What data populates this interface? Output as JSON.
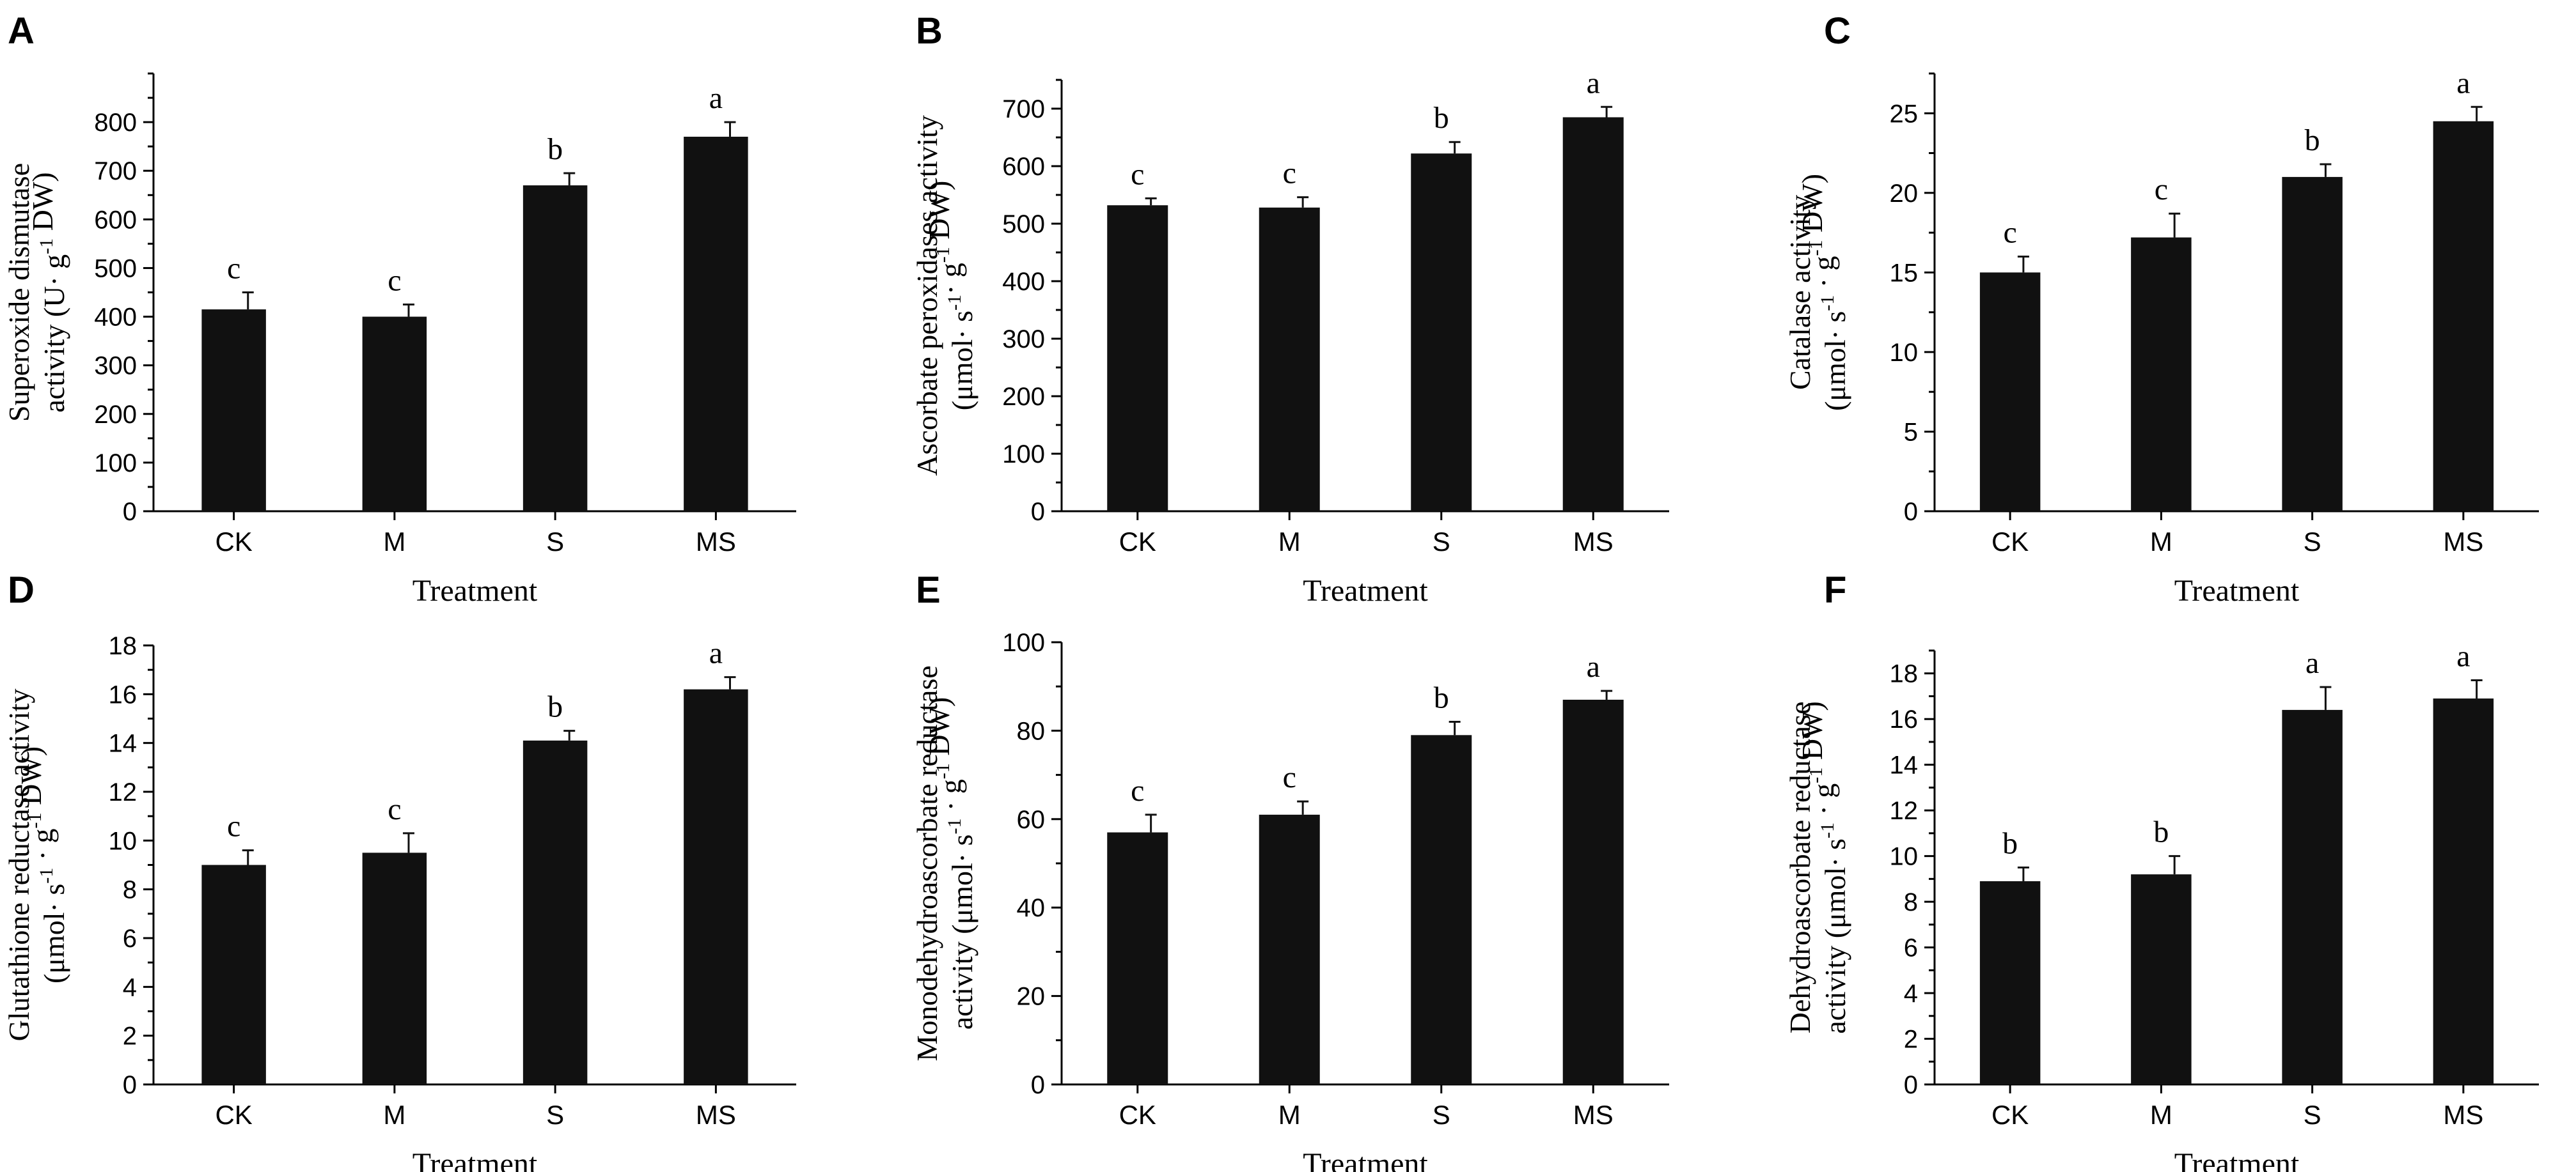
{
  "chart_data": [
    {
      "type": "bar",
      "panel_label": "A",
      "categories": [
        "CK",
        "M",
        "S",
        "MS"
      ],
      "values": [
        415,
        400,
        670,
        770
      ],
      "errors": [
        35,
        25,
        25,
        30
      ],
      "significance": [
        "c",
        "c",
        "b",
        "a"
      ],
      "xlabel": "Treatment",
      "ylabel_lines": [
        {
          "segments": [
            {
              "text": "Superoxide dismutase"
            }
          ]
        },
        {
          "segments": [
            {
              "text": "activity (U· g"
            },
            {
              "text": "-1",
              "sup": true
            },
            {
              "text": " DW)"
            }
          ]
        }
      ],
      "ylim": [
        0,
        900
      ],
      "yticks": [
        0,
        100,
        200,
        300,
        400,
        500,
        600,
        700,
        800
      ]
    },
    {
      "type": "bar",
      "panel_label": "B",
      "categories": [
        "CK",
        "M",
        "S",
        "MS"
      ],
      "values": [
        532,
        528,
        622,
        685
      ],
      "errors": [
        12,
        18,
        20,
        18
      ],
      "significance": [
        "c",
        "c",
        "b",
        "a"
      ],
      "xlabel": "Treatment",
      "ylabel_lines": [
        {
          "segments": [
            {
              "text": "Ascorbate peroxidases activity"
            }
          ]
        },
        {
          "segments": [
            {
              "text": "(μmol· s"
            },
            {
              "text": "-1",
              "sup": true
            },
            {
              "text": "· g"
            },
            {
              "text": "-1",
              "sup": true
            },
            {
              "text": " DW)"
            }
          ]
        }
      ],
      "ylim": [
        0,
        750
      ],
      "yticks": [
        0,
        100,
        200,
        300,
        400,
        500,
        600,
        700
      ]
    },
    {
      "type": "bar",
      "panel_label": "C",
      "categories": [
        "CK",
        "M",
        "S",
        "MS"
      ],
      "values": [
        15,
        17.2,
        21,
        24.5
      ],
      "errors": [
        1.0,
        1.5,
        0.8,
        0.9
      ],
      "significance": [
        "c",
        "c",
        "b",
        "a"
      ],
      "xlabel": "Treatment",
      "ylabel_lines": [
        {
          "segments": [
            {
              "text": "Catalase activity"
            }
          ]
        },
        {
          "segments": [
            {
              "text": "(μmol· s"
            },
            {
              "text": "-1",
              "sup": true
            },
            {
              "text": " · g"
            },
            {
              "text": "-1",
              "sup": true
            },
            {
              "text": " DW)"
            }
          ]
        }
      ],
      "ylim": [
        0,
        27.5
      ],
      "yticks": [
        0,
        5,
        10,
        15,
        20,
        25
      ]
    },
    {
      "type": "bar",
      "panel_label": "D",
      "categories": [
        "CK",
        "M",
        "S",
        "MS"
      ],
      "values": [
        9.0,
        9.5,
        14.1,
        16.2
      ],
      "errors": [
        0.6,
        0.8,
        0.4,
        0.5
      ],
      "significance": [
        "c",
        "c",
        "b",
        "a"
      ],
      "xlabel": "Treatment",
      "ylabel_lines": [
        {
          "segments": [
            {
              "text": "Glutathione reductase activity"
            }
          ]
        },
        {
          "segments": [
            {
              "text": "(μmol· s"
            },
            {
              "text": "-1",
              "sup": true
            },
            {
              "text": " · g"
            },
            {
              "text": "-1",
              "sup": true
            },
            {
              "text": " DW)"
            }
          ]
        }
      ],
      "ylim": [
        0,
        18
      ],
      "yticks": [
        0,
        2,
        4,
        6,
        8,
        10,
        12,
        14,
        16,
        18
      ]
    },
    {
      "type": "bar",
      "panel_label": "E",
      "categories": [
        "CK",
        "M",
        "S",
        "MS"
      ],
      "values": [
        57,
        61,
        79,
        87
      ],
      "errors": [
        4,
        3,
        3,
        2
      ],
      "significance": [
        "c",
        "c",
        "b",
        "a"
      ],
      "xlabel": "Treatment",
      "ylabel_lines": [
        {
          "segments": [
            {
              "text": "Monodehydroascorbate reductase"
            }
          ]
        },
        {
          "segments": [
            {
              "text": "activity (μmol· s"
            },
            {
              "text": "-1",
              "sup": true
            },
            {
              "text": " · g"
            },
            {
              "text": "-1",
              "sup": true
            },
            {
              "text": " DW)"
            }
          ]
        }
      ],
      "ylim": [
        0,
        100
      ],
      "yticks": [
        0,
        20,
        40,
        60,
        80,
        100
      ]
    },
    {
      "type": "bar",
      "panel_label": "F",
      "categories": [
        "CK",
        "M",
        "S",
        "MS"
      ],
      "values": [
        8.9,
        9.2,
        16.4,
        16.9
      ],
      "errors": [
        0.6,
        0.8,
        1.0,
        0.8
      ],
      "significance": [
        "b",
        "b",
        "a",
        "a"
      ],
      "xlabel": "Treatment",
      "ylabel_lines": [
        {
          "segments": [
            {
              "text": "Dehydroascorbate reductase"
            }
          ]
        },
        {
          "segments": [
            {
              "text": "activity (μmol· s"
            },
            {
              "text": "-1",
              "sup": true
            },
            {
              "text": " · g"
            },
            {
              "text": "-1",
              "sup": true
            },
            {
              "text": " DW)"
            }
          ]
        }
      ],
      "ylim": [
        0,
        19
      ],
      "yticks": [
        0,
        2,
        4,
        6,
        8,
        10,
        12,
        14,
        16,
        18
      ]
    }
  ],
  "colors": {
    "bar": "#111111",
    "axis": "#000000",
    "text": "#000000",
    "background": "#ffffff"
  }
}
